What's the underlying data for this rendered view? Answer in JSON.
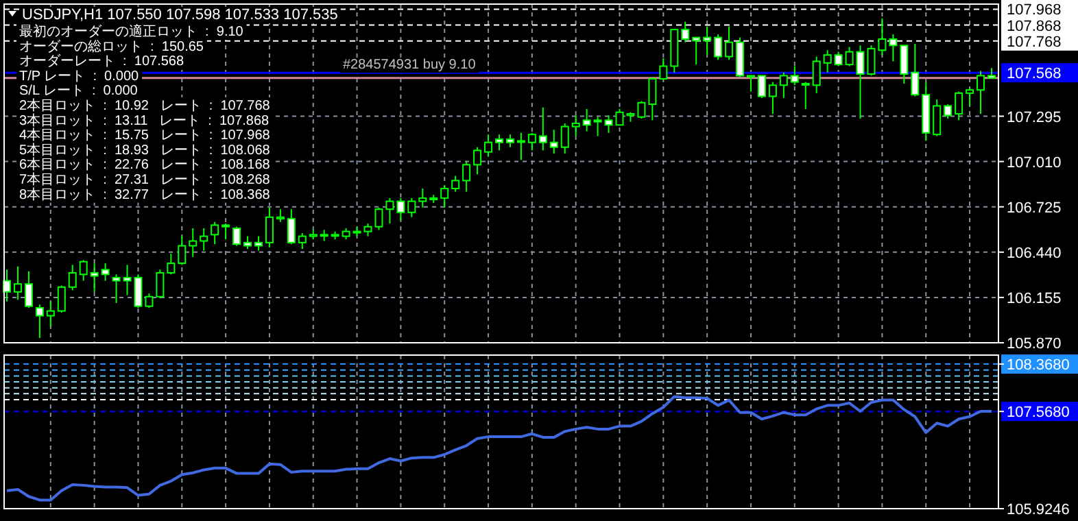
{
  "chart_data": [
    {
      "type": "candlestick",
      "title": "USDJPY,H1  107.550 107.598 107.533 107.535",
      "color": "#00ff00",
      "grid": true,
      "categories": [
        null,
        null,
        null,
        null,
        null,
        null,
        null,
        null,
        null,
        null,
        null,
        null,
        null,
        null,
        null,
        null,
        null,
        null,
        null,
        null,
        null,
        null,
        null,
        null,
        null,
        null,
        null,
        null,
        null,
        null,
        null,
        null,
        null,
        null,
        null,
        null,
        null,
        null,
        null,
        null,
        null,
        null,
        null,
        null,
        null,
        null,
        null,
        null,
        null,
        null,
        null,
        null,
        null,
        null,
        null,
        null,
        null,
        null,
        null,
        null,
        null,
        null,
        null,
        null,
        null,
        null,
        null,
        null,
        null,
        null,
        null,
        null,
        null,
        null,
        null,
        null,
        null,
        null,
        null,
        null,
        null,
        null,
        null,
        null,
        null,
        null,
        null,
        null,
        null,
        null,
        null
      ],
      "ohlc": [
        [
          106.26,
          106.33,
          106.13,
          106.19
        ],
        [
          106.19,
          106.35,
          106.14,
          106.24
        ],
        [
          106.24,
          106.32,
          106.09,
          106.1
        ],
        [
          106.09,
          106.11,
          105.9,
          106.04
        ],
        [
          106.04,
          106.13,
          105.97,
          106.07
        ],
        [
          106.07,
          106.23,
          106.06,
          106.22
        ],
        [
          106.22,
          106.36,
          106.2,
          106.31
        ],
        [
          106.3,
          106.39,
          106.26,
          106.38
        ],
        [
          106.31,
          106.37,
          106.19,
          106.29
        ],
        [
          106.33,
          106.37,
          106.26,
          106.3
        ],
        [
          106.28,
          106.3,
          106.12,
          106.26
        ],
        [
          106.28,
          106.36,
          106.17,
          106.26
        ],
        [
          106.28,
          106.3,
          106.09,
          106.1
        ],
        [
          106.1,
          106.18,
          106.09,
          106.16
        ],
        [
          106.16,
          106.33,
          106.15,
          106.31
        ],
        [
          106.31,
          106.43,
          106.3,
          106.37
        ],
        [
          106.37,
          106.54,
          106.36,
          106.48
        ],
        [
          106.48,
          106.59,
          106.41,
          106.51
        ],
        [
          106.51,
          106.59,
          106.45,
          106.54
        ],
        [
          106.55,
          106.63,
          106.49,
          106.61
        ],
        [
          106.61,
          106.62,
          106.52,
          106.6
        ],
        [
          106.59,
          106.6,
          106.48,
          106.49
        ],
        [
          106.5,
          106.54,
          106.46,
          106.48
        ],
        [
          106.5,
          106.54,
          106.45,
          106.48
        ],
        [
          106.5,
          106.72,
          106.47,
          106.66
        ],
        [
          106.65,
          106.71,
          106.63,
          106.66
        ],
        [
          106.65,
          106.71,
          106.49,
          106.5
        ],
        [
          106.5,
          106.56,
          106.46,
          106.54
        ],
        [
          106.54,
          106.58,
          106.52,
          106.55
        ],
        [
          106.55,
          106.58,
          106.51,
          106.55
        ],
        [
          106.55,
          106.57,
          106.52,
          106.55
        ],
        [
          106.54,
          106.59,
          106.52,
          106.57
        ],
        [
          106.57,
          106.6,
          106.54,
          106.57
        ],
        [
          106.57,
          106.62,
          106.54,
          106.6
        ],
        [
          106.6,
          106.72,
          106.58,
          106.71
        ],
        [
          106.71,
          106.78,
          106.62,
          106.76
        ],
        [
          106.76,
          106.78,
          106.64,
          106.69
        ],
        [
          106.69,
          106.78,
          106.66,
          106.76
        ],
        [
          106.76,
          106.84,
          106.72,
          106.78
        ],
        [
          106.78,
          106.8,
          106.75,
          106.78
        ],
        [
          106.78,
          106.86,
          106.72,
          106.84
        ],
        [
          106.84,
          106.92,
          106.82,
          106.89
        ],
        [
          106.89,
          107.01,
          106.82,
          106.99
        ],
        [
          106.99,
          107.1,
          106.93,
          107.08
        ],
        [
          107.07,
          107.18,
          107.04,
          107.13
        ],
        [
          107.15,
          107.18,
          107.08,
          107.13
        ],
        [
          107.15,
          107.18,
          107.1,
          107.13
        ],
        [
          107.14,
          107.19,
          107.02,
          107.14
        ],
        [
          107.13,
          107.19,
          107.08,
          107.18
        ],
        [
          107.17,
          107.35,
          107.08,
          107.13
        ],
        [
          107.13,
          107.21,
          107.06,
          107.1
        ],
        [
          107.1,
          107.25,
          107.06,
          107.23
        ],
        [
          107.23,
          107.3,
          107.17,
          107.25
        ],
        [
          107.27,
          107.34,
          107.2,
          107.24
        ],
        [
          107.27,
          107.29,
          107.17,
          107.26
        ],
        [
          107.27,
          107.3,
          107.19,
          107.24
        ],
        [
          107.24,
          107.34,
          107.24,
          107.32
        ],
        [
          107.3,
          107.32,
          107.26,
          107.31
        ],
        [
          107.29,
          107.39,
          107.28,
          107.38
        ],
        [
          107.37,
          107.54,
          107.27,
          107.53
        ],
        [
          107.53,
          107.66,
          107.52,
          107.61
        ],
        [
          107.61,
          107.84,
          107.57,
          107.84
        ],
        [
          107.84,
          107.89,
          107.76,
          107.78
        ],
        [
          107.79,
          107.79,
          107.62,
          107.77
        ],
        [
          107.79,
          107.86,
          107.68,
          107.77
        ],
        [
          107.79,
          107.81,
          107.65,
          107.67
        ],
        [
          107.67,
          107.86,
          107.65,
          107.76
        ],
        [
          107.76,
          107.79,
          107.54,
          107.55
        ],
        [
          107.55,
          107.55,
          107.45,
          107.55
        ],
        [
          107.55,
          107.55,
          107.41,
          107.42
        ],
        [
          107.42,
          107.51,
          107.31,
          107.49
        ],
        [
          107.49,
          107.57,
          107.41,
          107.55
        ],
        [
          107.55,
          107.61,
          107.49,
          107.51
        ],
        [
          107.5,
          107.51,
          107.34,
          107.5
        ],
        [
          107.49,
          107.67,
          107.44,
          107.64
        ],
        [
          107.63,
          107.71,
          107.57,
          107.68
        ],
        [
          107.68,
          107.7,
          107.61,
          107.62
        ],
        [
          107.62,
          107.73,
          107.61,
          107.7
        ],
        [
          107.7,
          107.74,
          107.28,
          107.56
        ],
        [
          107.56,
          107.74,
          107.55,
          107.72
        ],
        [
          107.71,
          107.91,
          107.68,
          107.78
        ],
        [
          107.78,
          107.81,
          107.64,
          107.74
        ],
        [
          107.74,
          107.74,
          107.5,
          107.56
        ],
        [
          107.57,
          107.75,
          107.42,
          107.43
        ],
        [
          107.43,
          107.51,
          107.14,
          107.19
        ],
        [
          107.18,
          107.4,
          107.17,
          107.36
        ],
        [
          107.36,
          107.37,
          107.28,
          107.3
        ],
        [
          107.31,
          107.45,
          107.27,
          107.44
        ],
        [
          107.44,
          107.47,
          107.36,
          107.46
        ],
        [
          107.46,
          107.58,
          107.31,
          107.55
        ],
        [
          107.55,
          107.598,
          107.533,
          107.535
        ]
      ],
      "ylim": [
        105.87,
        108.0
      ],
      "yticks": [
        {
          "value": 105.87,
          "label": "105.870"
        },
        106.155,
        {
          "value": 106.44,
          "label": "106.440"
        },
        106.725,
        {
          "value": 107.01,
          "label": "107.010"
        },
        107.295
      ],
      "ref_lines": [
        {
          "axis": "y",
          "value": 107.968,
          "label": "107.968",
          "color": "#ffffff",
          "line_style": "dashed"
        },
        {
          "axis": "y",
          "value": 107.868,
          "label": "107.868",
          "color": "#ffffff",
          "line_style": "dashed"
        },
        {
          "axis": "y",
          "value": 107.768,
          "label": "107.768",
          "color": "#ffffff",
          "line_style": "dashed"
        },
        {
          "axis": "y",
          "value": 107.568,
          "label": "107.568",
          "color": "#0000ff",
          "line_style": "solid"
        },
        {
          "axis": "y",
          "value": 107.535,
          "color": "#d08898",
          "line_style": "solid"
        }
      ],
      "annotations": [
        "最初のオーダーの適正ロット  :  9.10",
        "オーダーの総ロット  :  150.65",
        "オーダーレート  :  107.568",
        "T/P レート  :  0.000",
        "S/L レート  :  0.000",
        "2本目ロット  :  10.92   レート  :  107.768",
        "3本目ロット  :  13.11   レート  :  107.868",
        "4本目ロット  :  15.75   レート  :  107.968",
        "5本目ロット  :  18.93   レート  :  108.068",
        "6本目ロット  :  22.76   レート  :  108.168",
        "7本目ロット  :  27.31   レート  :  108.268",
        "8本目ロット  :  32.77   レート  :  108.368",
        {
          "text": "#284574931 buy 9.10",
          "y": 107.568
        }
      ]
    },
    {
      "type": "line",
      "grid": "x",
      "categories": [
        null,
        null,
        null,
        null,
        null,
        null,
        null,
        null,
        null,
        null,
        null,
        null,
        null,
        null,
        null,
        null,
        null,
        null,
        null,
        null,
        null,
        null,
        null,
        null,
        null,
        null,
        null,
        null,
        null,
        null,
        null,
        null,
        null,
        null,
        null,
        null,
        null,
        null,
        null,
        null,
        null,
        null,
        null,
        null,
        null,
        null,
        null,
        null,
        null,
        null,
        null,
        null,
        null,
        null,
        null,
        null,
        null,
        null,
        null,
        null,
        null,
        null,
        null,
        null,
        null,
        null,
        null,
        null,
        null,
        null,
        null,
        null,
        null,
        null,
        null,
        null,
        null,
        null,
        null,
        null,
        null,
        null,
        null,
        null,
        null,
        null,
        null,
        null,
        null,
        null,
        null
      ],
      "series": [
        {
          "color": "#4169e1",
          "values": [
            106.23,
            106.25,
            106.13,
            106.07,
            106.07,
            106.23,
            106.33,
            106.32,
            106.3,
            106.29,
            106.29,
            106.28,
            106.15,
            106.17,
            106.32,
            106.39,
            106.5,
            106.53,
            106.58,
            106.61,
            106.61,
            106.52,
            106.52,
            106.52,
            106.68,
            106.67,
            106.54,
            106.56,
            106.56,
            106.56,
            106.56,
            106.59,
            106.6,
            106.6,
            106.7,
            106.77,
            106.73,
            106.78,
            106.79,
            106.79,
            106.84,
            106.92,
            106.99,
            107.11,
            107.14,
            107.14,
            107.14,
            107.14,
            107.19,
            107.13,
            107.13,
            107.23,
            107.27,
            107.3,
            107.27,
            107.27,
            107.32,
            107.32,
            107.4,
            107.53,
            107.64,
            107.82,
            107.8,
            107.8,
            107.79,
            107.67,
            107.76,
            107.55,
            107.55,
            107.44,
            107.49,
            107.55,
            107.51,
            107.51,
            107.61,
            107.67,
            107.67,
            107.71,
            107.57,
            107.72,
            107.76,
            107.76,
            107.6,
            107.48,
            107.21,
            107.37,
            107.32,
            107.44,
            107.48,
            107.57,
            107.57
          ]
        }
      ],
      "ylim": [
        105.9246,
        108.52
      ],
      "yticks": [
        105.9246,
        {
          "value": 107.568,
          "label": "107.5680"
        },
        {
          "value": 108.368,
          "label": "108.3680"
        }
      ],
      "ref_lines": [
        {
          "axis": "y",
          "value": 108.368,
          "color": "#1e90ff",
          "line_style": "dashed"
        },
        {
          "axis": "y",
          "value": 108.268,
          "color": "#3aa8ff",
          "line_style": "dashed"
        },
        {
          "axis": "y",
          "value": 108.168,
          "color": "#5cc0f0",
          "line_style": "dashed"
        },
        {
          "axis": "y",
          "value": 108.068,
          "color": "#80d0f0",
          "line_style": "dashed"
        },
        {
          "axis": "y",
          "value": 107.968,
          "color": "#a8e0f0",
          "line_style": "dashed"
        },
        {
          "axis": "y",
          "value": 107.868,
          "color": "#c8eef8",
          "line_style": "dashed"
        },
        {
          "axis": "y",
          "value": 107.768,
          "color": "#ffffff",
          "line_style": "dashed"
        },
        {
          "axis": "y",
          "value": 107.568,
          "color": "#0000ff",
          "line_style": "dashed"
        }
      ]
    }
  ]
}
